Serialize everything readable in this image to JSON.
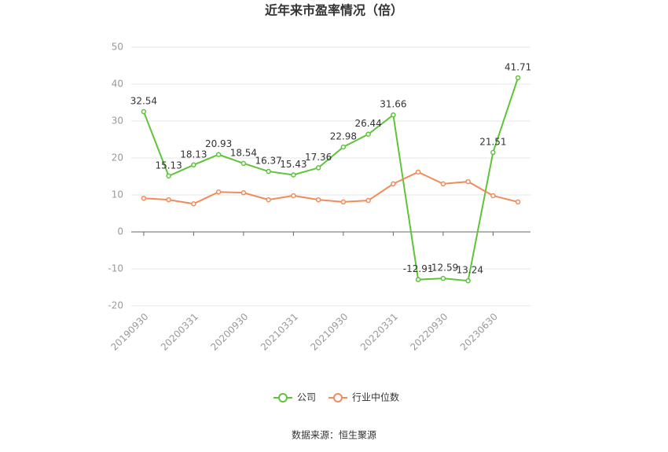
{
  "chart_data": {
    "type": "line",
    "title": "近年来市盈率情况（倍）",
    "categories": [
      "20190930",
      null,
      "20200331",
      null,
      "20200930",
      null,
      "20210331",
      null,
      "20210930",
      null,
      "20220331",
      null,
      "20220930",
      null,
      "20230630",
      null
    ],
    "series": [
      {
        "name": "公司",
        "color": "#5ec43a",
        "values": [
          32.54,
          15.13,
          18.13,
          20.93,
          18.54,
          16.37,
          15.43,
          17.36,
          22.98,
          26.44,
          31.66,
          -12.91,
          -12.59,
          -13.24,
          21.51,
          41.71
        ]
      },
      {
        "name": "行业中位数",
        "color": "#f08c5c",
        "values": [
          9.1,
          8.7,
          7.6,
          10.8,
          10.6,
          8.7,
          9.8,
          8.7,
          8.1,
          8.5,
          13.0,
          16.2,
          13.0,
          13.6,
          9.8,
          8.1
        ]
      }
    ],
    "ylim": [
      -20,
      50
    ],
    "yticks": [
      -20,
      -10,
      0,
      10,
      20,
      30,
      40,
      50
    ],
    "grid": true,
    "legend": "bottom",
    "source": "数据来源：恒生聚源"
  }
}
